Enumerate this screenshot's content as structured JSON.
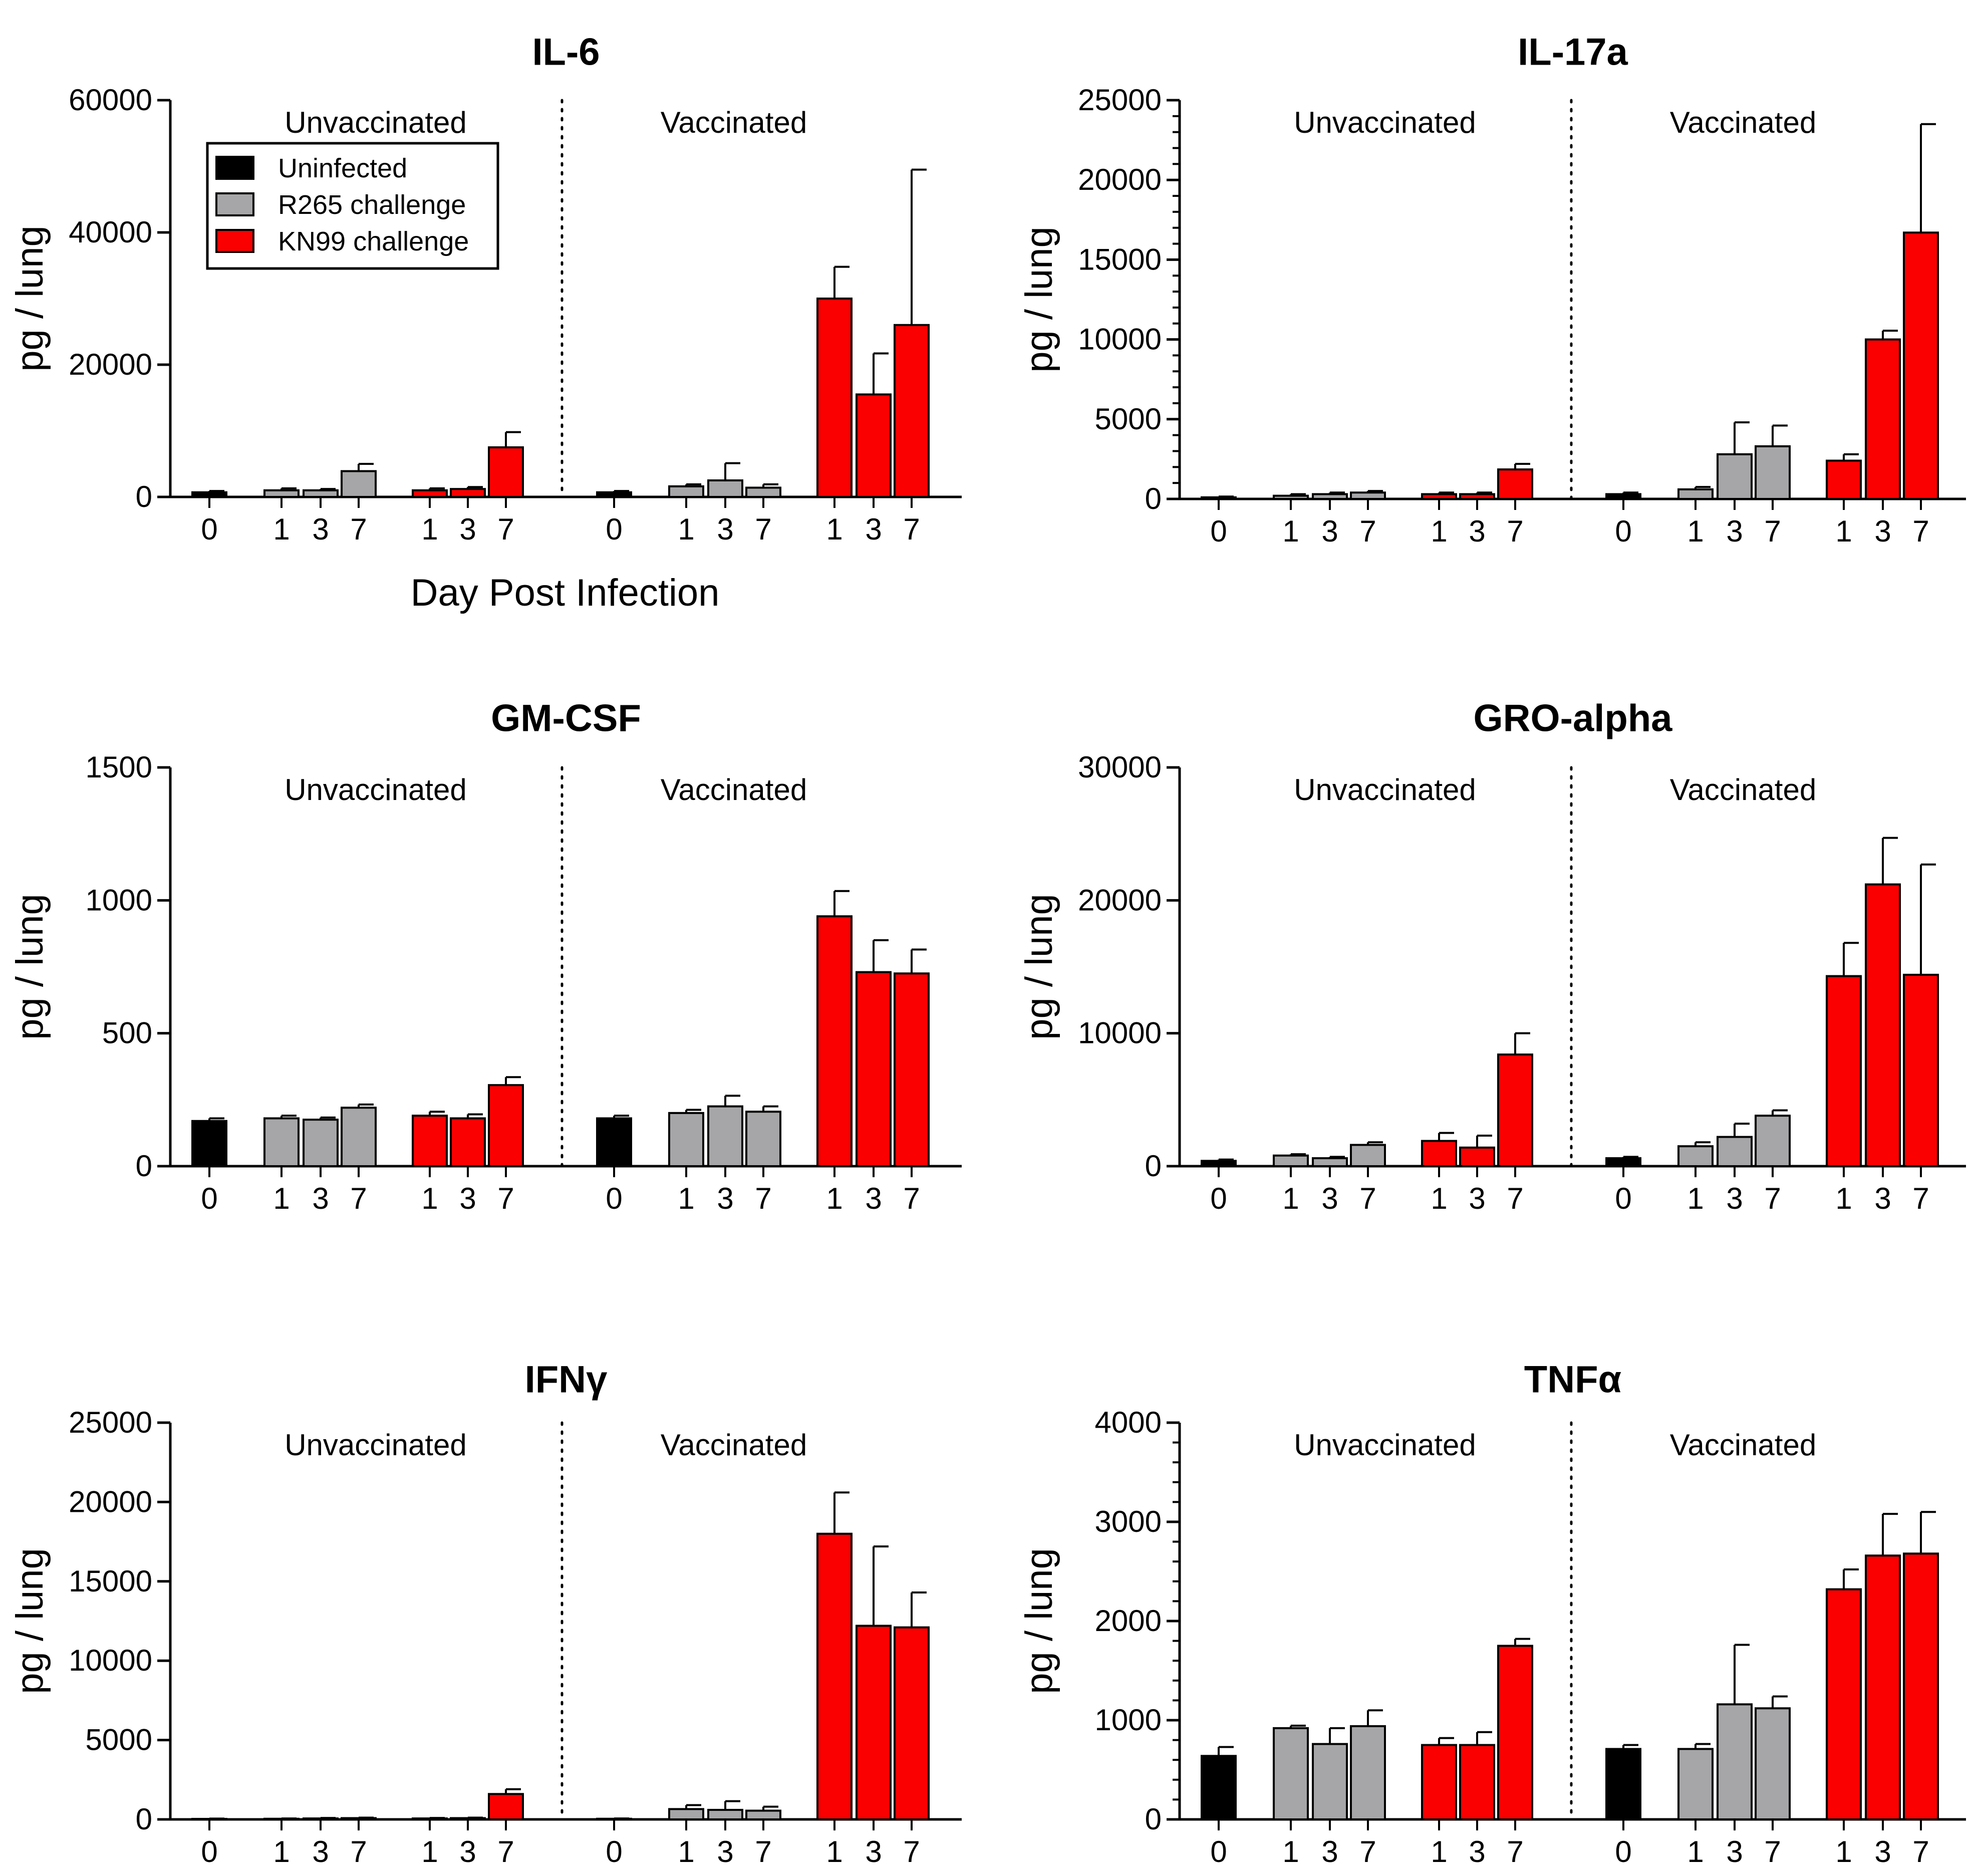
{
  "colors": {
    "uninfected": "#000000",
    "r265": "#a6a6a8",
    "kn99": "#fa0000",
    "axis": "#000000"
  },
  "legend": {
    "uninfected": "Uninfected",
    "r265": "R265 challenge",
    "kn99": "KN99 challenge"
  },
  "common": {
    "ylabel": "pg / lung",
    "xlabel": "Day Post Infection",
    "groups": [
      "Unvaccinated",
      "Vaccinated"
    ],
    "day_labels": [
      "0",
      "1",
      "3",
      "7",
      "1",
      "3",
      "7"
    ],
    "series_order": [
      "uninfected",
      "r265",
      "r265",
      "r265",
      "kn99",
      "kn99",
      "kn99"
    ]
  },
  "chart_data": [
    {
      "type": "bar",
      "title": "IL-6",
      "ylabel": "pg / lung",
      "xlabel": "Day Post Infection",
      "ylim": [
        0,
        60000
      ],
      "yticks": [
        0,
        20000,
        40000,
        60000
      ],
      "ytick_labels": [
        "0",
        "20000",
        "40000",
        "60000"
      ],
      "minor_step": 0,
      "unvaccinated": {
        "values": [
          700,
          1000,
          1000,
          3900,
          1000,
          1200,
          7500
        ],
        "errors": [
          200,
          300,
          200,
          1100,
          300,
          300,
          2300
        ]
      },
      "vaccinated": {
        "values": [
          700,
          1600,
          2500,
          1400,
          30000,
          15500,
          26000
        ],
        "errors": [
          200,
          300,
          2600,
          500,
          4800,
          6200,
          23500
        ]
      }
    },
    {
      "type": "bar",
      "title": "IL-17a",
      "ylabel": "pg / lung",
      "xlabel": "",
      "ylim": [
        0,
        25000
      ],
      "yticks": [
        0,
        5000,
        10000,
        15000,
        20000,
        25000
      ],
      "ytick_labels": [
        "0",
        "5000",
        "10000",
        "15000",
        "20000",
        "25000"
      ],
      "minor_step": 1000,
      "unvaccinated": {
        "values": [
          100,
          200,
          300,
          400,
          300,
          300,
          1850
        ],
        "errors": [
          50,
          100,
          100,
          100,
          100,
          100,
          350
        ]
      },
      "vaccinated": {
        "values": [
          300,
          600,
          2800,
          3300,
          2400,
          10000,
          16700
        ],
        "errors": [
          100,
          150,
          2000,
          1300,
          400,
          550,
          6800
        ]
      }
    },
    {
      "type": "bar",
      "title": "GM-CSF",
      "ylabel": "pg / lung",
      "xlabel": "",
      "ylim": [
        0,
        1500
      ],
      "yticks": [
        0,
        500,
        1000,
        1500
      ],
      "ytick_labels": [
        "0",
        "500",
        "1000",
        "1500"
      ],
      "minor_step": 0,
      "unvaccinated": {
        "values": [
          170,
          180,
          175,
          220,
          190,
          180,
          305
        ],
        "errors": [
          10,
          10,
          8,
          12,
          15,
          15,
          30
        ]
      },
      "vaccinated": {
        "values": [
          180,
          200,
          225,
          205,
          940,
          730,
          725
        ],
        "errors": [
          10,
          12,
          40,
          20,
          95,
          120,
          90
        ]
      }
    },
    {
      "type": "bar",
      "title": "GRO-alpha",
      "ylabel": "pg / lung",
      "xlabel": "",
      "ylim": [
        0,
        30000
      ],
      "yticks": [
        0,
        10000,
        20000,
        30000
      ],
      "ytick_labels": [
        "0",
        "10000",
        "20000",
        "30000"
      ],
      "minor_step": 0,
      "unvaccinated": {
        "values": [
          400,
          800,
          600,
          1600,
          1900,
          1400,
          8400
        ],
        "errors": [
          100,
          100,
          100,
          200,
          600,
          900,
          1600
        ]
      },
      "vaccinated": {
        "values": [
          600,
          1500,
          2200,
          3800,
          14300,
          21200,
          14400
        ],
        "errors": [
          100,
          300,
          1000,
          400,
          2500,
          3500,
          8300
        ]
      }
    },
    {
      "type": "bar",
      "title": "IFNγ",
      "ylabel": "pg / lung",
      "xlabel": "",
      "ylim": [
        0,
        25000
      ],
      "yticks": [
        0,
        5000,
        10000,
        15000,
        20000,
        25000
      ],
      "ytick_labels": [
        "0",
        "5000",
        "10000",
        "15000",
        "20000",
        "25000"
      ],
      "minor_step": 0,
      "unvaccinated": {
        "values": [
          30,
          40,
          60,
          80,
          60,
          80,
          1600
        ],
        "errors": [
          20,
          20,
          30,
          30,
          30,
          30,
          300
        ]
      },
      "vaccinated": {
        "values": [
          40,
          650,
          600,
          550,
          18000,
          12200,
          12100
        ],
        "errors": [
          20,
          250,
          550,
          250,
          2600,
          5000,
          2200
        ]
      }
    },
    {
      "type": "bar",
      "title": "TNFα",
      "ylabel": "pg / lung",
      "xlabel": "",
      "ylim": [
        0,
        4000
      ],
      "yticks": [
        0,
        1000,
        2000,
        3000,
        4000
      ],
      "ytick_labels": [
        "0",
        "1000",
        "2000",
        "3000",
        "4000"
      ],
      "minor_step": 200,
      "unvaccinated": {
        "values": [
          640,
          920,
          760,
          940,
          750,
          750,
          1750
        ],
        "errors": [
          90,
          25,
          160,
          160,
          70,
          130,
          70
        ]
      },
      "vaccinated": {
        "values": [
          710,
          710,
          1160,
          1120,
          2320,
          2660,
          2680
        ],
        "errors": [
          40,
          50,
          600,
          120,
          200,
          420,
          420
        ]
      }
    }
  ]
}
